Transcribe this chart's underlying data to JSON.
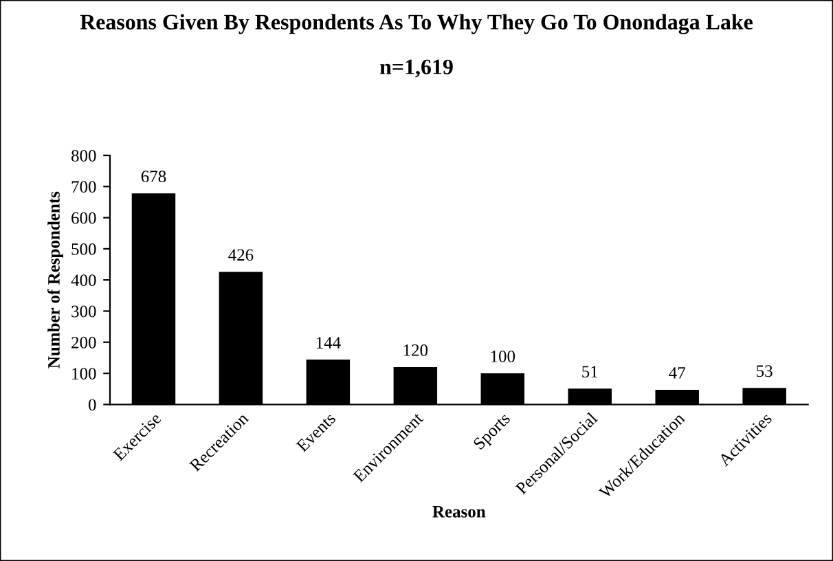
{
  "chart_data": {
    "type": "bar",
    "title": "Reasons Given By Respondents As To Why They Go To Onondaga Lake",
    "subtitle": "n=1,619",
    "xlabel": "Reason",
    "ylabel": "Number of Respondents",
    "categories": [
      "Exercise",
      "Recreation",
      "Events",
      "Environment",
      "Sports",
      "Personal/Social",
      "Work/Education",
      "Activities"
    ],
    "values": [
      678,
      426,
      144,
      120,
      100,
      51,
      47,
      53
    ],
    "color": "#000000",
    "ylim": [
      0,
      800
    ],
    "yticks": [
      0,
      100,
      200,
      300,
      400,
      500,
      600,
      700,
      800
    ],
    "grid": false,
    "legend": false,
    "data_labels": true
  }
}
